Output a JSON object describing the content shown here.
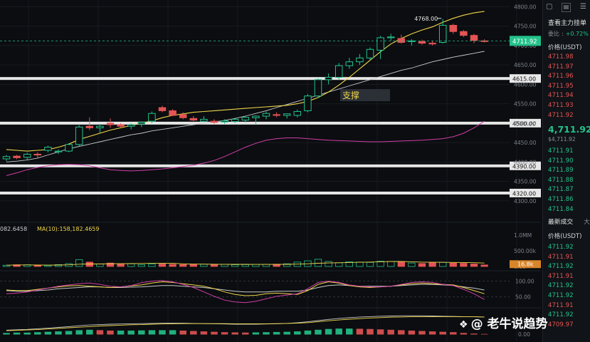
{
  "chart_data": {
    "type": "candlestick",
    "price_axis": {
      "ticks": [
        "4800.00",
        "4750.00",
        "4700.00",
        "4650.00",
        "4600.00",
        "4550.00",
        "4500.00",
        "4450.00",
        "4400.00",
        "4350.00",
        "4300.00"
      ],
      "range": [
        4285,
        4808
      ]
    },
    "peak_label": "4768.00",
    "current_price": "4711.92",
    "support_label": "支撑",
    "support_levels": [
      {
        "value": 4615,
        "label": "4615.00"
      },
      {
        "value": 4500,
        "label": "4500.00"
      },
      {
        "value": 4390,
        "label": "4390.00"
      },
      {
        "value": 4320,
        "label": "4320.00"
      }
    ],
    "candles": [
      {
        "o": 4408,
        "h": 4418,
        "l": 4402,
        "c": 4414
      },
      {
        "o": 4415,
        "h": 4418,
        "l": 4407,
        "c": 4411
      },
      {
        "o": 4412,
        "h": 4424,
        "l": 4405,
        "c": 4420
      },
      {
        "o": 4420,
        "h": 4425,
        "l": 4410,
        "c": 4418
      },
      {
        "o": 4430,
        "h": 4442,
        "l": 4425,
        "c": 4438
      },
      {
        "o": 4426,
        "h": 4432,
        "l": 4420,
        "c": 4428
      },
      {
        "o": 4428,
        "h": 4448,
        "l": 4425,
        "c": 4445
      },
      {
        "o": 4445,
        "h": 4495,
        "l": 4440,
        "c": 4490
      },
      {
        "o": 4492,
        "h": 4515,
        "l": 4482,
        "c": 4488
      },
      {
        "o": 4488,
        "h": 4498,
        "l": 4475,
        "c": 4492
      },
      {
        "o": 4500,
        "h": 4512,
        "l": 4488,
        "c": 4496
      },
      {
        "o": 4496,
        "h": 4500,
        "l": 4488,
        "c": 4492
      },
      {
        "o": 4492,
        "h": 4500,
        "l": 4484,
        "c": 4496
      },
      {
        "o": 4498,
        "h": 4504,
        "l": 4490,
        "c": 4502
      },
      {
        "o": 4505,
        "h": 4530,
        "l": 4500,
        "c": 4525
      },
      {
        "o": 4540,
        "h": 4545,
        "l": 4528,
        "c": 4532
      },
      {
        "o": 4532,
        "h": 4536,
        "l": 4518,
        "c": 4520
      },
      {
        "o": 4522,
        "h": 4528,
        "l": 4510,
        "c": 4514
      },
      {
        "o": 4512,
        "h": 4518,
        "l": 4505,
        "c": 4508
      },
      {
        "o": 4505,
        "h": 4518,
        "l": 4503,
        "c": 4510
      },
      {
        "o": 4505,
        "h": 4510,
        "l": 4498,
        "c": 4502
      },
      {
        "o": 4503,
        "h": 4510,
        "l": 4498,
        "c": 4506
      },
      {
        "o": 4504,
        "h": 4514,
        "l": 4500,
        "c": 4510
      },
      {
        "o": 4508,
        "h": 4518,
        "l": 4502,
        "c": 4515
      },
      {
        "o": 4514,
        "h": 4520,
        "l": 4498,
        "c": 4518
      },
      {
        "o": 4518,
        "h": 4530,
        "l": 4510,
        "c": 4525
      },
      {
        "o": 4522,
        "h": 4528,
        "l": 4515,
        "c": 4520
      },
      {
        "o": 4520,
        "h": 4525,
        "l": 4512,
        "c": 4524
      },
      {
        "o": 4520,
        "h": 4535,
        "l": 4515,
        "c": 4530
      },
      {
        "o": 4532,
        "h": 4575,
        "l": 4528,
        "c": 4570
      },
      {
        "o": 4570,
        "h": 4615,
        "l": 4565,
        "c": 4612
      },
      {
        "o": 4612,
        "h": 4628,
        "l": 4600,
        "c": 4618
      },
      {
        "o": 4618,
        "h": 4655,
        "l": 4612,
        "c": 4648
      },
      {
        "o": 4648,
        "h": 4668,
        "l": 4640,
        "c": 4658
      },
      {
        "o": 4658,
        "h": 4678,
        "l": 4650,
        "c": 4668
      },
      {
        "o": 4668,
        "h": 4695,
        "l": 4662,
        "c": 4690
      },
      {
        "o": 4688,
        "h": 4725,
        "l": 4665,
        "c": 4720
      },
      {
        "o": 4720,
        "h": 4730,
        "l": 4712,
        "c": 4722
      },
      {
        "o": 4718,
        "h": 4728,
        "l": 4705,
        "c": 4708
      },
      {
        "o": 4710,
        "h": 4716,
        "l": 4700,
        "c": 4712
      },
      {
        "o": 4710,
        "h": 4715,
        "l": 4702,
        "c": 4706
      },
      {
        "o": 4706,
        "h": 4712,
        "l": 4700,
        "c": 4704
      },
      {
        "o": 4708,
        "h": 4768,
        "l": 4705,
        "c": 4752
      },
      {
        "o": 4752,
        "h": 4756,
        "l": 4730,
        "c": 4736
      },
      {
        "o": 4736,
        "h": 4740,
        "l": 4722,
        "c": 4726
      },
      {
        "o": 4726,
        "h": 4730,
        "l": 4706,
        "c": 4713
      },
      {
        "o": 4712,
        "h": 4716,
        "l": 4708,
        "c": 4711.92
      }
    ],
    "ma_yellow": [
      4432,
      4430,
      4428,
      4430,
      4432,
      4438,
      4446,
      4458,
      4466,
      4474,
      4482,
      4488,
      4494,
      4500,
      4506,
      4514,
      4520,
      4524,
      4528,
      4530,
      4532,
      4534,
      4536,
      4538,
      4540,
      4542,
      4544,
      4546,
      4550,
      4556,
      4566,
      4580,
      4598,
      4618,
      4640,
      4662,
      4684,
      4704,
      4718,
      4730,
      4740,
      4748,
      4760,
      4770,
      4778,
      4784,
      4788
    ],
    "ma_white": [
      4400,
      4402,
      4405,
      4410,
      4418,
      4426,
      4434,
      4440,
      4446,
      4452,
      4458,
      4464,
      4470,
      4474,
      4480,
      4484,
      4488,
      4492,
      4496,
      4500,
      4503,
      4507,
      4512,
      4518,
      4525,
      4532,
      4540,
      4548,
      4556,
      4564,
      4572,
      4580,
      4588,
      4596,
      4604,
      4612,
      4620,
      4628,
      4636,
      4642,
      4650,
      4658,
      4664,
      4670,
      4675,
      4680,
      4685
    ],
    "ma_magenta": [
      4365,
      4372,
      4380,
      4386,
      4390,
      4393,
      4394,
      4393,
      4390,
      4385,
      4380,
      4378,
      4377,
      4378,
      4380,
      4382,
      4385,
      4388,
      4392,
      4397,
      4404,
      4414,
      4426,
      4438,
      4448,
      4456,
      4460,
      4462,
      4462,
      4460,
      4458,
      4456,
      4455,
      4454,
      4453,
      4452,
      4452,
      4453,
      4454,
      4455,
      4456,
      4458,
      4460,
      4465,
      4474,
      4488,
      4505
    ],
    "volume_label": "082.6458",
    "volume_ma_label": "MA(10):158,182.4659",
    "volume_axis_ticks": [
      "1.0MM",
      "500.00k",
      "0.00"
    ],
    "volume_current": "16.8k",
    "volumes": [
      40,
      55,
      55,
      30,
      35,
      60,
      90,
      220,
      140,
      80,
      110,
      70,
      85,
      60,
      75,
      80,
      70,
      60,
      65,
      70,
      72,
      68,
      55,
      60,
      65,
      70,
      72,
      85,
      140,
      180,
      230,
      160,
      120,
      150,
      140,
      130,
      170,
      160,
      140,
      110,
      95,
      120,
      130,
      110,
      100,
      80,
      50
    ],
    "osc_axis_ticks": [
      "100.00",
      "50.00"
    ],
    "osc_a": [
      72,
      70,
      70,
      74,
      78,
      82,
      85,
      86,
      84,
      82,
      80,
      82,
      85,
      88,
      94,
      98,
      96,
      92,
      88,
      84,
      76,
      66,
      58,
      54,
      55,
      60,
      62,
      60,
      58,
      70,
      90,
      98,
      94,
      86,
      82,
      80,
      82,
      84,
      88,
      92,
      94,
      92,
      90,
      88,
      80,
      70,
      60
    ],
    "osc_b": [
      60,
      62,
      66,
      72,
      78,
      84,
      88,
      92,
      94,
      90,
      84,
      82,
      86,
      95,
      100,
      102,
      98,
      90,
      80,
      66,
      52,
      40,
      34,
      32,
      36,
      44,
      52,
      56,
      60,
      76,
      96,
      100,
      96,
      88,
      84,
      82,
      82,
      84,
      90,
      96,
      98,
      96,
      90,
      86,
      74,
      60,
      42
    ],
    "osc_c": [
      70,
      68,
      68,
      70,
      72,
      76,
      78,
      80,
      82,
      82,
      80,
      80,
      81,
      82,
      84,
      86,
      86,
      84,
      82,
      80,
      76,
      72,
      68,
      66,
      66,
      66,
      68,
      68,
      68,
      72,
      80,
      86,
      88,
      86,
      84,
      84,
      84,
      84,
      86,
      88,
      90,
      90,
      88,
      86,
      82,
      78,
      72
    ],
    "macd_axis_ticks": [
      "0.00"
    ],
    "macd_hist": [
      6,
      8,
      8,
      10,
      12,
      14,
      16,
      20,
      22,
      20,
      18,
      18,
      18,
      19,
      20,
      20,
      20,
      18,
      16,
      14,
      12,
      10,
      9,
      8,
      9,
      10,
      11,
      12,
      14,
      18,
      22,
      26,
      28,
      28,
      27,
      26,
      24,
      22,
      20,
      18,
      16,
      14,
      12,
      10,
      6,
      3,
      1
    ],
    "macd_line": [
      20,
      22,
      24,
      27,
      30,
      34,
      38,
      42,
      46,
      48,
      50,
      51,
      52,
      53,
      54,
      55,
      55,
      55,
      54,
      53,
      52,
      51,
      50,
      50,
      50,
      51,
      52,
      54,
      57,
      62,
      68,
      74,
      79,
      83,
      86,
      88,
      90,
      91,
      92,
      92,
      92,
      91,
      90,
      89,
      88,
      87,
      86
    ],
    "macd_signal": [
      18,
      19,
      21,
      23,
      26,
      29,
      32,
      35,
      38,
      41,
      43,
      45,
      47,
      48,
      50,
      51,
      52,
      53,
      53,
      53,
      53,
      53,
      52,
      52,
      52,
      52,
      53,
      54,
      55,
      58,
      62,
      67,
      71,
      75,
      78,
      81,
      83,
      85,
      86,
      87,
      88,
      88,
      88,
      88,
      87,
      87,
      86
    ]
  },
  "right_panel": {
    "title": "查看主力挂单",
    "compare_label": "委比",
    "compare_value": "+0.72%",
    "price_header": "价格(USDT)",
    "asks": [
      "4711.98",
      "4711.97",
      "4711.96",
      "4711.95",
      "4711.94",
      "4711.93",
      "4711.92"
    ],
    "last_price": "4,711.92",
    "last_price_usd": "$4,711.92",
    "bids": [
      "4711.91",
      "4711.90",
      "4711.89",
      "4711.88",
      "4711.87",
      "4711.86",
      "4711.84"
    ],
    "trades_title": "最新成交",
    "trades_extra": "大",
    "trades_price_header": "价格(USDT)",
    "trades": [
      {
        "price": "4711.92",
        "side": "green"
      },
      {
        "price": "4711.91",
        "side": "red"
      },
      {
        "price": "4711.92",
        "side": "green"
      },
      {
        "price": "4711.91",
        "side": "red"
      },
      {
        "price": "4711.92",
        "side": "green"
      },
      {
        "price": "4711.92",
        "side": "green"
      },
      {
        "price": "4711.91",
        "side": "red"
      },
      {
        "price": "4711.92",
        "side": "green"
      },
      {
        "price": "4709.97",
        "side": "red"
      }
    ]
  },
  "watermark": {
    "icon": "diamond-logo-icon",
    "text": "@ 老牛说趋势"
  },
  "colors": {
    "up": "#23c28b",
    "down": "#e35454",
    "ma_yellow": "#f0d64a",
    "ma_white": "#c8c8c8",
    "ma_magenta": "#d13ea8",
    "support_line": "#e6e6e6",
    "support_box": "#2b2f36",
    "support_text": "#f0d64a",
    "price_tag": "#23c28b",
    "volume_tag": "#d9862a"
  }
}
